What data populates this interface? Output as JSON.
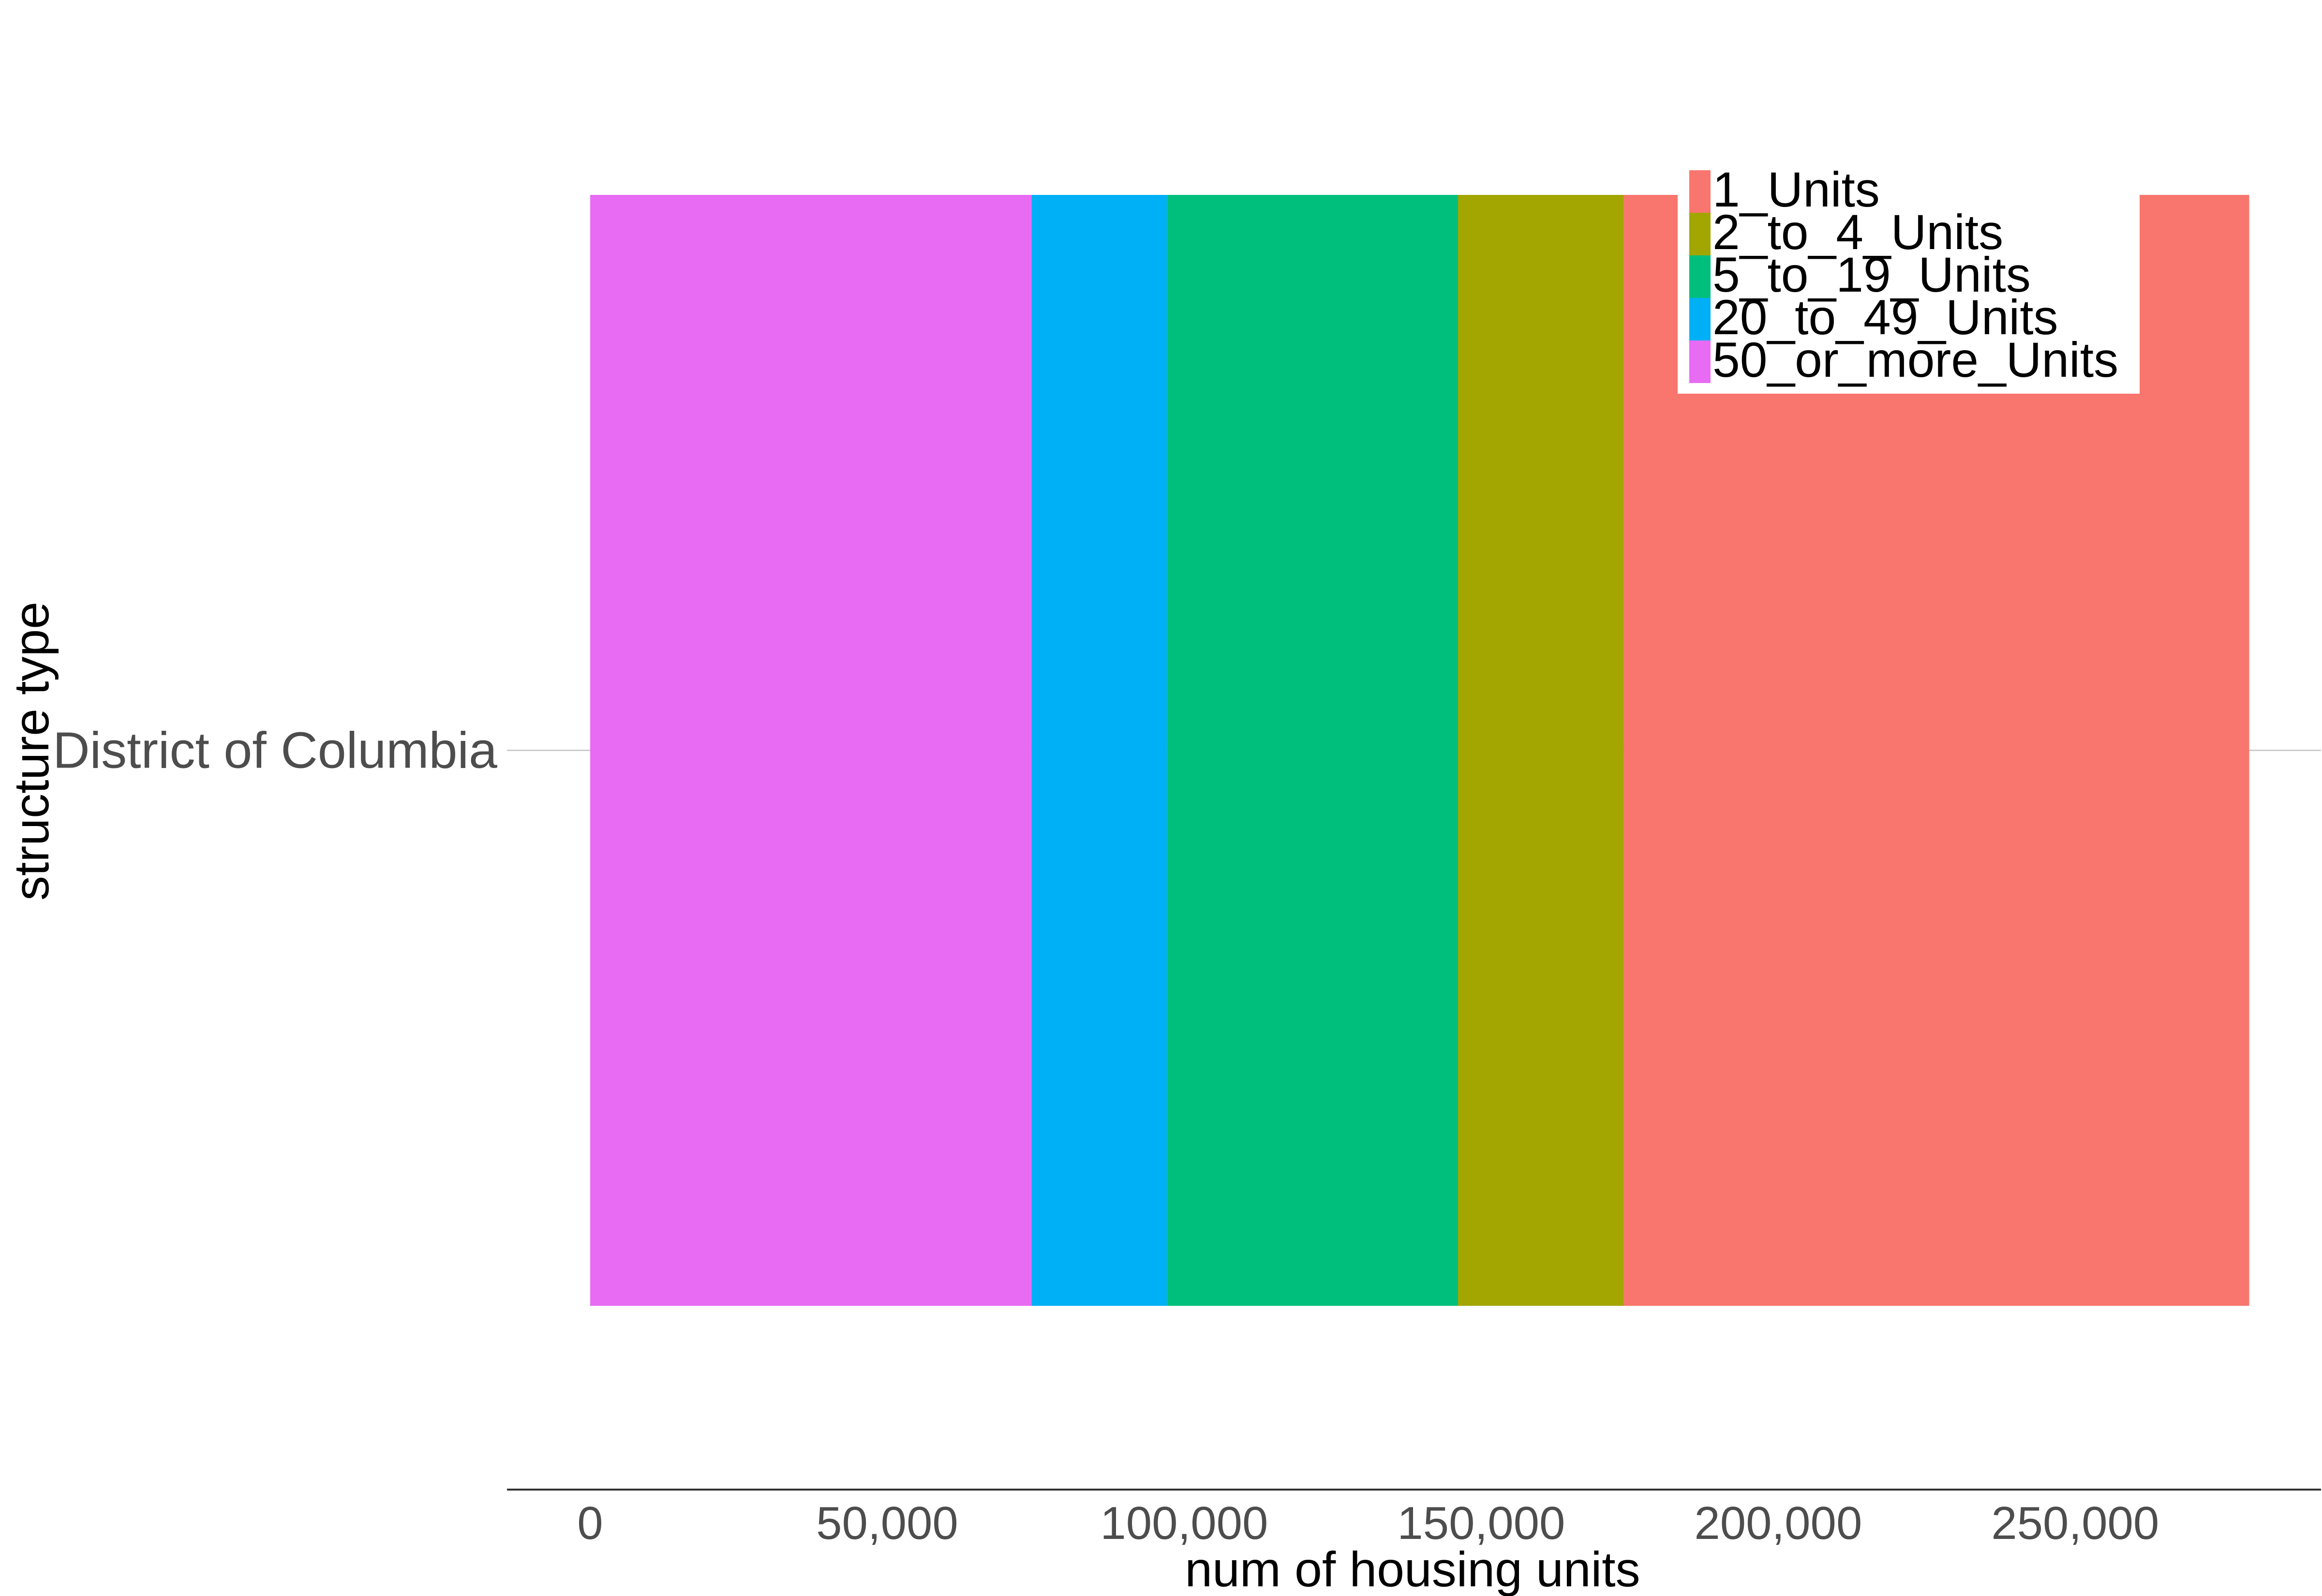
{
  "chart_data": {
    "type": "bar",
    "orientation": "horizontal",
    "stacked": true,
    "title": "",
    "xlabel": "num of housing units",
    "ylabel": "structure type",
    "categories": [
      "District of Columbia"
    ],
    "xlim": [
      0,
      280000
    ],
    "x_ticks": [
      0,
      50000,
      100000,
      150000,
      200000,
      250000
    ],
    "x_tick_labels": [
      "0",
      "50,000",
      "100,000",
      "150,000",
      "200,000",
      "250,000"
    ],
    "stack_order_from_zero": [
      "50_or_more_Units",
      "20_to_49_Units",
      "5_to_19_Units",
      "2_to_4_Units",
      "1_Units"
    ],
    "series": [
      {
        "name": "1_Units",
        "color": "#F8766D",
        "values": [
          105300
        ]
      },
      {
        "name": "2_to_4_Units",
        "color": "#A3A500",
        "values": [
          27900
        ]
      },
      {
        "name": "5_to_19_Units",
        "color": "#00BF7D",
        "values": [
          49000
        ]
      },
      {
        "name": "20_to_49_Units",
        "color": "#00B0F6",
        "values": [
          22800
        ]
      },
      {
        "name": "50_or_more_Units",
        "color": "#E76BF3",
        "values": [
          74300
        ]
      }
    ],
    "legend": {
      "position": "top-right",
      "entries": [
        "1_Units",
        "2_to_4_Units",
        "5_to_19_Units",
        "20_to_49_Units",
        "50_or_more_Units"
      ]
    },
    "grid": {
      "major_y": true,
      "major_x": false
    },
    "axis_line_color": "#333333",
    "grid_color": "#cccccc"
  }
}
